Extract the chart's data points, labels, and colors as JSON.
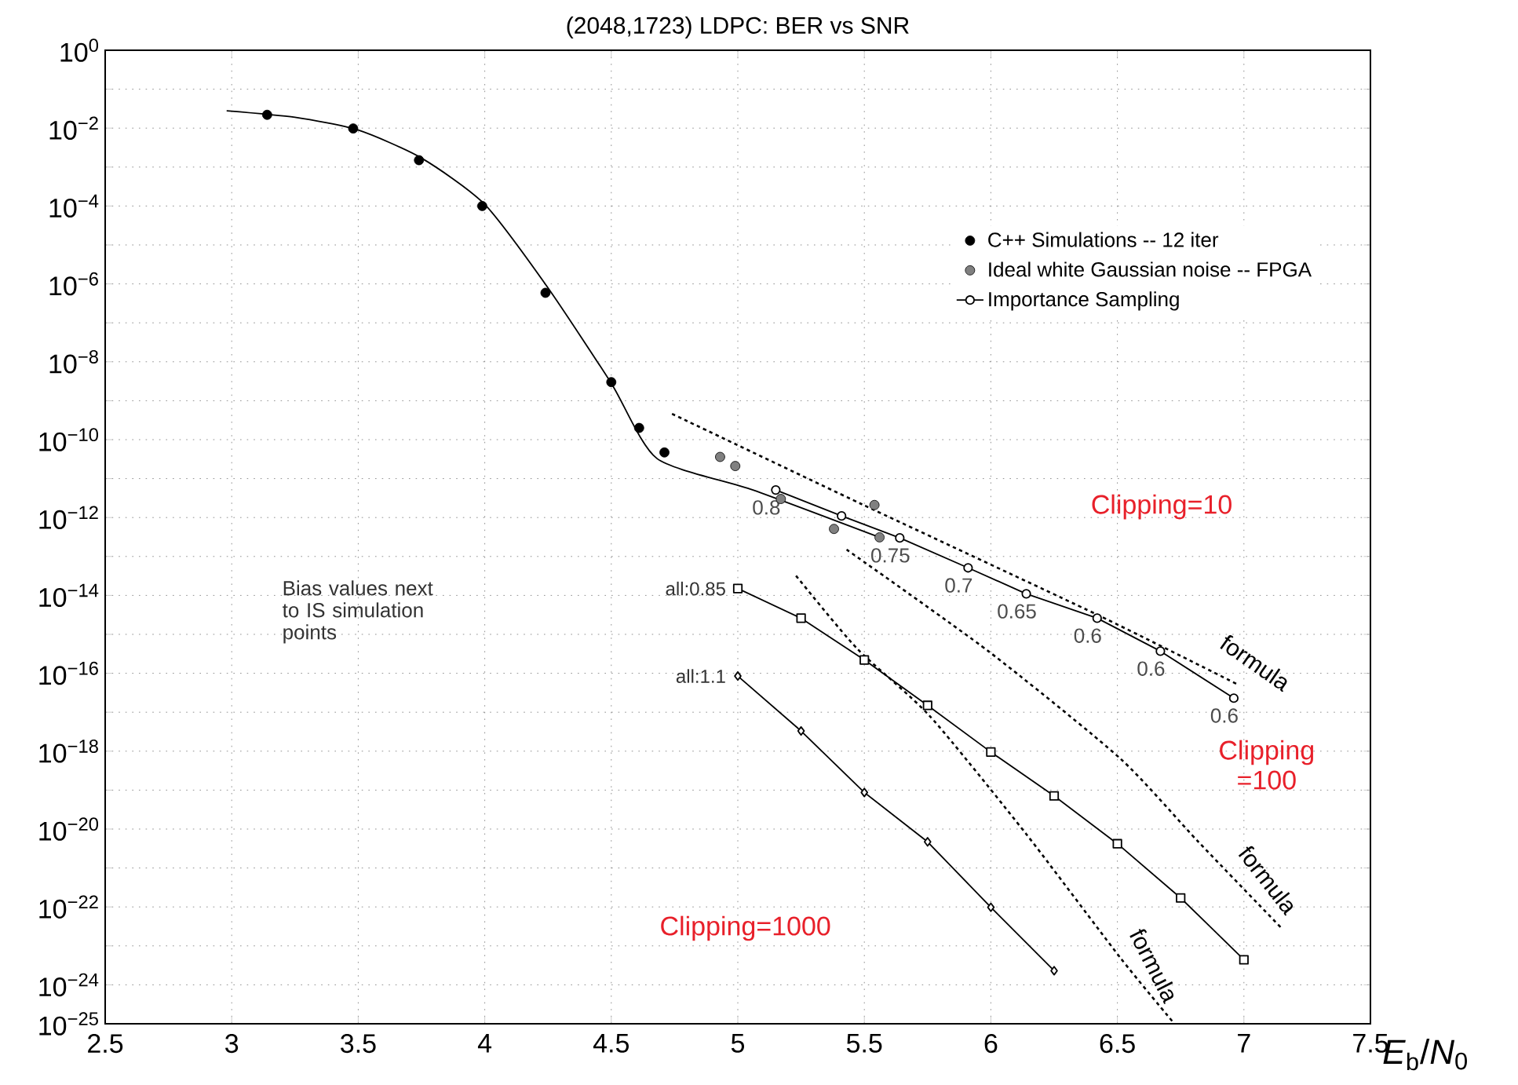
{
  "chart_data": {
    "type": "line",
    "title": "(2048,1723) LDPC: BER vs SNR",
    "xlabel": "*E*$_{b}$/*N*$_{0}$",
    "log": "y",
    "grid": true,
    "legend": "top right",
    "xlim": [
      2.5,
      7.5
    ],
    "xticks": [
      2.5,
      3,
      3.5,
      4,
      4.5,
      5,
      5.5,
      6,
      6.5,
      7,
      7.5
    ],
    "ylim": [
      1e-25,
      1
    ],
    "yticks": [
      {
        "value": 1,
        "label": "10$^{0}$"
      },
      {
        "value": 0.1,
        "label": null
      },
      {
        "value": 0.01,
        "label": "10$^{−2}$"
      },
      {
        "value": 0.001,
        "label": null
      },
      {
        "value": 0.0001,
        "label": "10$^{−4}$"
      },
      {
        "value": 1e-05,
        "label": null
      },
      {
        "value": 1e-06,
        "label": "10$^{−6}$"
      },
      {
        "value": 1e-07,
        "label": null
      },
      {
        "value": 1e-08,
        "label": "10$^{−8}$"
      },
      {
        "value": 1e-09,
        "label": null
      },
      {
        "value": 1e-10,
        "label": "10$^{−10}$"
      },
      {
        "value": 1e-11,
        "label": null
      },
      {
        "value": 1e-12,
        "label": "10$^{−12}$"
      },
      {
        "value": 1e-13,
        "label": null
      },
      {
        "value": 1e-14,
        "label": "10$^{−14}$"
      },
      {
        "value": 1e-15,
        "label": null
      },
      {
        "value": 1e-16,
        "label": "10$^{−16}$"
      },
      {
        "value": 1e-17,
        "label": null
      },
      {
        "value": 1e-18,
        "label": "10$^{−18}$"
      },
      {
        "value": 1e-19,
        "label": null
      },
      {
        "value": 1e-20,
        "label": "10$^{−20}$"
      },
      {
        "value": 1e-21,
        "label": null
      },
      {
        "value": 1e-22,
        "label": "10$^{−22}$"
      },
      {
        "value": 1e-23,
        "label": null
      },
      {
        "value": 1e-24,
        "label": "10$^{−24}$"
      },
      {
        "value": 1e-25,
        "label": "10$^{−25}$"
      }
    ],
    "series": [
      {
        "name": "C++ Simulations -- 12 iter",
        "type": "scatter",
        "marker": "circle",
        "color": "#000000",
        "x": [
          3.14,
          3.48,
          3.74,
          3.99,
          4.24,
          4.5,
          4.61,
          4.71
        ],
        "values": [
          0.022,
          0.0098,
          0.0015,
          0.0001,
          5.9e-07,
          3e-09,
          2e-10,
          4.7e-11
        ]
      },
      {
        "type": "line",
        "marker": "none",
        "line_style": "solid",
        "color": "#000000",
        "x": [
          2.98,
          3.25,
          3.5,
          3.75,
          4.0,
          4.25,
          4.5,
          4.68,
          5.06,
          5.56
        ],
        "values": [
          0.028,
          0.019,
          0.0089,
          0.0017,
          0.00011,
          7.9e-07,
          2.8e-09,
          3.3e-11,
          5.1e-12,
          3.1e-13
        ]
      },
      {
        "name": "Ideal white Gaussian noise -- FPGA",
        "type": "scatter",
        "marker": "circle",
        "color": "#808080",
        "x": [
          4.93,
          4.99,
          5.17,
          5.38,
          5.54,
          5.56
        ],
        "values": [
          3.6e-11,
          2.1e-11,
          3e-12,
          5.1e-13,
          2.1e-12,
          3.1e-13
        ]
      },
      {
        "name": "Importance Sampling",
        "type": "line",
        "marker": "circle",
        "line_style": "solid",
        "color": "#000000",
        "x": [
          5.15,
          5.41,
          5.64,
          5.91,
          6.14,
          6.42,
          6.67,
          6.96
        ],
        "values": [
          5.1e-12,
          1.1e-12,
          3e-13,
          5.1e-14,
          1.1e-14,
          2.6e-15,
          3.7e-16,
          2.3e-17
        ]
      },
      {
        "type": "line",
        "marker": "square",
        "line_style": "solid",
        "color": "#000000",
        "x": [
          5,
          5.25,
          5.5,
          5.75,
          6,
          6.25,
          6.5,
          6.75,
          7
        ],
        "values": [
          1.5e-14,
          2.6e-15,
          2.2e-16,
          1.5e-17,
          9.5e-19,
          7.1e-20,
          4.2e-21,
          1.7e-22,
          4.4e-24
        ]
      },
      {
        "type": "line",
        "marker": "diamond",
        "line_style": "solid",
        "color": "#000000",
        "x": [
          5,
          5.25,
          5.5,
          5.75,
          6,
          6.25
        ],
        "values": [
          8.5e-17,
          3.3e-18,
          8.7e-20,
          4.7e-21,
          9.8e-23,
          2.3e-24
        ]
      },
      {
        "type": "line",
        "marker": "none",
        "line_style": "dotted",
        "color": "#000000",
        "x": [
          4.74,
          5.49,
          6.42,
          6.98
        ],
        "values": [
          4.6e-10,
          2.2e-12,
          3.2e-15,
          5e-17
        ]
      },
      {
        "type": "line",
        "marker": "none",
        "line_style": "dotted",
        "color": "#000000",
        "x": [
          5.43,
          5.99,
          6.51,
          6.82,
          7.15
        ],
        "values": [
          1.5e-13,
          3.7e-16,
          6.6e-19,
          4.7e-21,
          2.8e-23
        ]
      },
      {
        "type": "line",
        "marker": "none",
        "line_style": "dotted",
        "color": "#000000",
        "x": [
          5.23,
          5.47,
          5.76,
          6.14,
          6.51,
          6.72
        ],
        "values": [
          3.2e-14,
          4.4e-16,
          7.8e-18,
          7.4e-21,
          5.1e-24,
          1.1e-25
        ]
      }
    ],
    "annotations": [
      "Clipping=10",
      "Clipping =100",
      "Clipping=1000",
      "formula",
      "formula",
      "formula",
      "Bias values next to IS simulation points",
      {
        "text": "all:0.85",
        "x": 5,
        "y": 1.5e-14
      },
      {
        "text": "all:1.1",
        "x": 5,
        "y": 8.5e-17
      },
      {
        "text": "0.8",
        "x": 5.15,
        "y": 5.1e-12
      },
      {
        "text": "0.75",
        "x": 5.64,
        "y": 3e-13
      },
      {
        "text": "0.7",
        "x": 5.91,
        "y": 5.1e-14
      },
      {
        "text": "0.65",
        "x": 6.14,
        "y": 1.1e-14
      },
      {
        "text": "0.6",
        "x": 6.42,
        "y": 2.6e-15
      },
      {
        "text": "0.6",
        "x": 6.67,
        "y": 3.7e-16
      },
      {
        "text": "0.6",
        "x": 6.96,
        "y": 2.3e-17
      }
    ]
  }
}
